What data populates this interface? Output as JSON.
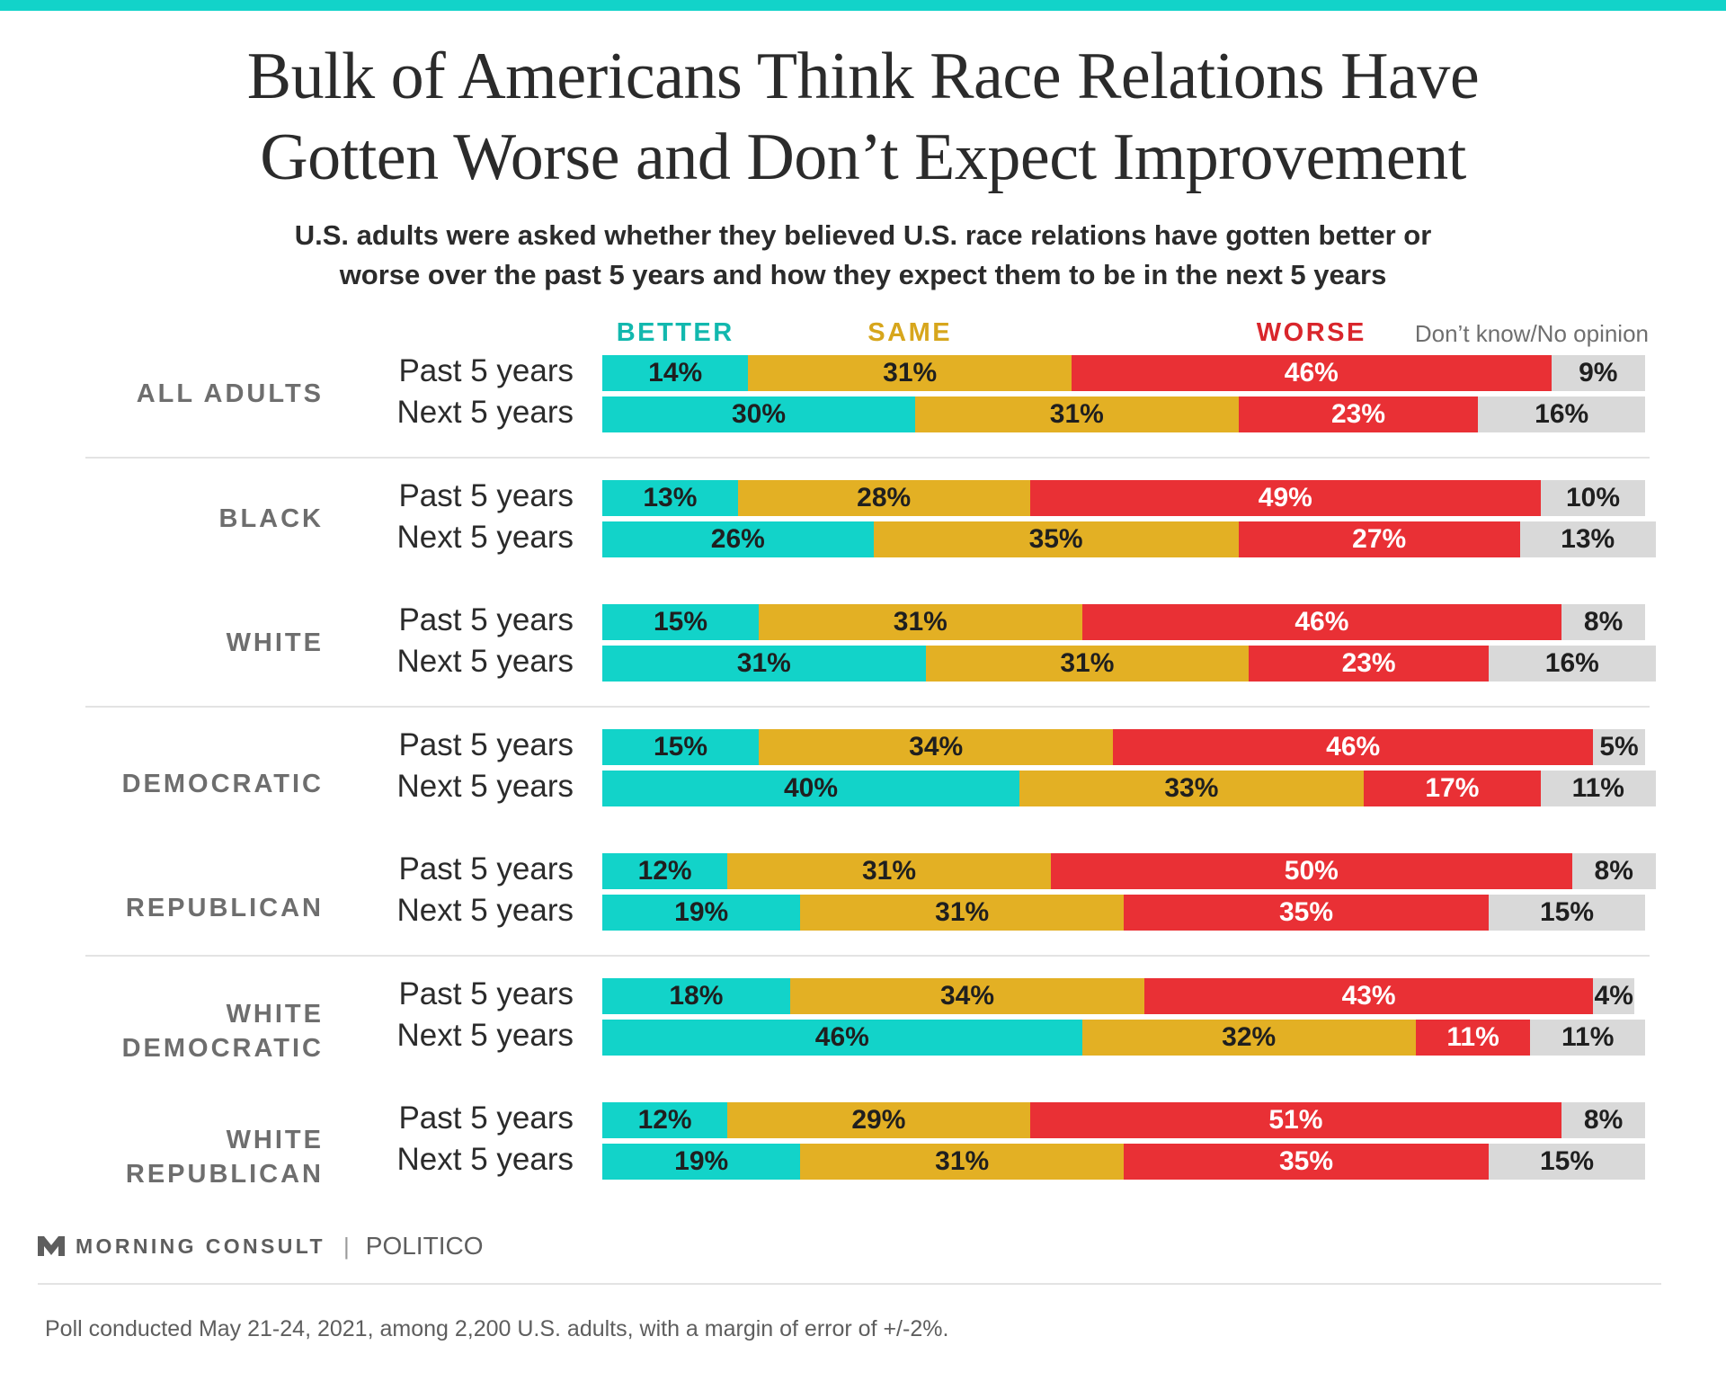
{
  "chart_data": {
    "type": "bar",
    "orientation": "horizontal",
    "stacked": true,
    "title_lines": [
      "Bulk of Americans Think Race Relations Have",
      "Gotten Worse and Don’t Expect Improvement"
    ],
    "subtitle_lines": [
      "U.S. adults were asked whether they believed U.S. race relations have gotten better or",
      "worse over the past 5 years and how they expect them to be in the next 5 years"
    ],
    "legend": [
      {
        "name": "BETTER",
        "color": "#12d3c9",
        "text_color": "#12b8ae"
      },
      {
        "name": "SAME",
        "color": "#e3b024",
        "text_color": "#d7a61c"
      },
      {
        "name": "WORSE",
        "color": "#e93035",
        "text_color": "#d9262c"
      },
      {
        "name": "Don’t know/No opinion",
        "color": "#d9d9d9",
        "text_color": "#6f6f6f"
      }
    ],
    "groups": [
      {
        "name": [
          "ALL ADULTS"
        ],
        "rows": [
          {
            "label": "Past 5 years",
            "values": [
              14,
              31,
              46,
              9
            ]
          },
          {
            "label": "Next 5 years",
            "values": [
              30,
              31,
              23,
              16
            ]
          }
        ]
      },
      {
        "name": [
          "BLACK"
        ],
        "rows": [
          {
            "label": "Past 5 years",
            "values": [
              13,
              28,
              49,
              10
            ]
          },
          {
            "label": "Next 5 years",
            "values": [
              26,
              35,
              27,
              13
            ]
          }
        ]
      },
      {
        "name": [
          "WHITE"
        ],
        "rows": [
          {
            "label": "Past 5 years",
            "values": [
              15,
              31,
              46,
              8
            ]
          },
          {
            "label": "Next 5 years",
            "values": [
              31,
              31,
              23,
              16
            ]
          }
        ]
      },
      {
        "name": [
          "DEMOCRATIC"
        ],
        "rows": [
          {
            "label": "Past 5 years",
            "values": [
              15,
              34,
              46,
              5
            ]
          },
          {
            "label": "Next 5 years",
            "values": [
              40,
              33,
              17,
              11
            ]
          }
        ]
      },
      {
        "name": [
          "REPUBLICAN"
        ],
        "rows": [
          {
            "label": "Past 5 years",
            "values": [
              12,
              31,
              50,
              8
            ]
          },
          {
            "label": "Next 5 years",
            "values": [
              19,
              31,
              35,
              15
            ]
          }
        ]
      },
      {
        "name": [
          "WHITE",
          "DEMOCRATIC"
        ],
        "rows": [
          {
            "label": "Past 5 years",
            "values": [
              18,
              34,
              43,
              4
            ]
          },
          {
            "label": "Next 5 years",
            "values": [
              46,
              32,
              11,
              11
            ]
          }
        ]
      },
      {
        "name": [
          "WHITE",
          "REPUBLICAN"
        ],
        "rows": [
          {
            "label": "Past 5 years",
            "values": [
              12,
              29,
              51,
              8
            ]
          },
          {
            "label": "Next 5 years",
            "values": [
              19,
              31,
              35,
              15
            ]
          }
        ]
      }
    ]
  },
  "footer": {
    "brand": "MORNING CONSULT",
    "partner": "POLITICO",
    "separator": "|",
    "note": "Poll conducted May 21-24, 2021, among 2,200 U.S. adults, with a margin of error of +/-2%."
  }
}
